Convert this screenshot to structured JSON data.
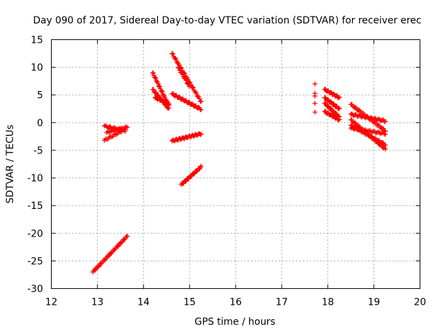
{
  "chart_data": {
    "type": "scatter",
    "title": "Day 090 of 2017, Sidereal Day-to-day VTEC variation (SDTVAR) for receiver erec",
    "xlabel": "GPS time / hours",
    "ylabel": "SDTVAR / TECUs",
    "xlim": [
      12,
      20
    ],
    "ylim": [
      -30,
      15
    ],
    "xticks": [
      12,
      13,
      14,
      15,
      16,
      17,
      18,
      19,
      20
    ],
    "yticks": [
      -30,
      -25,
      -20,
      -15,
      -10,
      -5,
      0,
      5,
      10,
      15
    ],
    "grid": true,
    "marker": "plus",
    "color": "#ff0000",
    "segments": [
      {
        "x0": 12.9,
        "x1": 13.65,
        "y0": -27.0,
        "y1": -20.5,
        "n": 40
      },
      {
        "x0": 13.15,
        "x1": 13.6,
        "y0": -3.2,
        "y1": -1.2,
        "n": 18
      },
      {
        "x0": 13.15,
        "x1": 13.6,
        "y0": -0.6,
        "y1": -1.5,
        "n": 18
      },
      {
        "x0": 13.2,
        "x1": 13.65,
        "y0": -1.8,
        "y1": -0.8,
        "n": 18
      },
      {
        "x0": 13.25,
        "x1": 13.6,
        "y0": -1.0,
        "y1": -1.3,
        "n": 14
      },
      {
        "x0": 14.2,
        "x1": 14.55,
        "y0": 9.0,
        "y1": 3.0,
        "n": 28
      },
      {
        "x0": 14.2,
        "x1": 14.55,
        "y0": 6.0,
        "y1": 2.5,
        "n": 24
      },
      {
        "x0": 14.25,
        "x1": 14.55,
        "y0": 4.5,
        "y1": 3.5,
        "n": 18
      },
      {
        "x0": 14.62,
        "x1": 15.25,
        "y0": 12.5,
        "y1": 3.8,
        "n": 38
      },
      {
        "x0": 14.75,
        "x1": 15.0,
        "y0": 10.0,
        "y1": 6.5,
        "n": 14
      },
      {
        "x0": 14.62,
        "x1": 15.25,
        "y0": 5.2,
        "y1": 2.4,
        "n": 34
      },
      {
        "x0": 14.62,
        "x1": 15.25,
        "y0": -3.3,
        "y1": -2.0,
        "n": 34
      },
      {
        "x0": 14.82,
        "x1": 15.25,
        "y0": -11.2,
        "y1": -8.0,
        "n": 28
      },
      {
        "x0": 17.93,
        "x1": 18.25,
        "y0": 6.0,
        "y1": 4.5,
        "n": 20
      },
      {
        "x0": 17.93,
        "x1": 18.25,
        "y0": 4.5,
        "y1": 2.5,
        "n": 20
      },
      {
        "x0": 17.93,
        "x1": 18.25,
        "y0": 3.5,
        "y1": 1.0,
        "n": 20
      },
      {
        "x0": 17.93,
        "x1": 18.25,
        "y0": 2.0,
        "y1": 0.5,
        "n": 20
      },
      {
        "x0": 18.5,
        "x1": 19.25,
        "y0": 3.3,
        "y1": -1.5,
        "n": 34
      },
      {
        "x0": 18.5,
        "x1": 19.25,
        "y0": 1.5,
        "y1": 0.3,
        "n": 34
      },
      {
        "x0": 18.5,
        "x1": 19.25,
        "y0": 0.5,
        "y1": -4.8,
        "n": 36
      },
      {
        "x0": 18.5,
        "x1": 19.25,
        "y0": -0.5,
        "y1": -4.0,
        "n": 34
      },
      {
        "x0": 18.5,
        "x1": 19.25,
        "y0": -1.0,
        "y1": -2.0,
        "n": 30
      }
    ],
    "points": [
      [
        17.72,
        7.0
      ],
      [
        17.72,
        5.3
      ],
      [
        17.72,
        4.8
      ],
      [
        17.72,
        3.5
      ],
      [
        17.72,
        1.9
      ]
    ]
  }
}
